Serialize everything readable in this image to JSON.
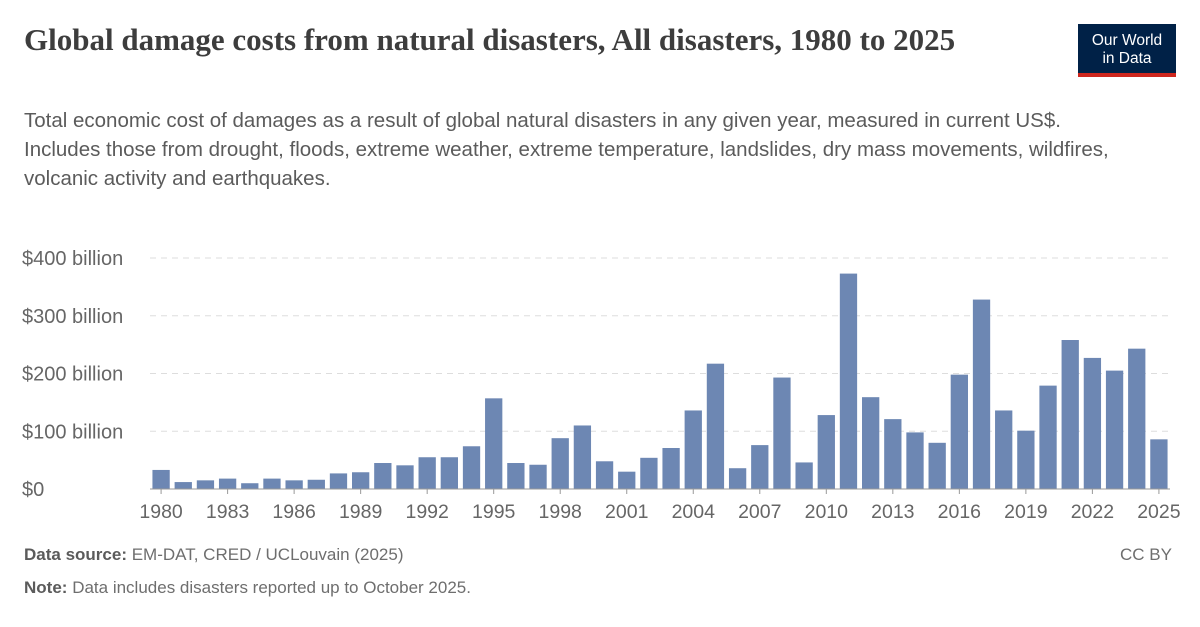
{
  "header": {
    "title": "Global damage costs from natural disasters, All disasters, 1980 to 2025",
    "subtitle": "Total economic cost of damages as a result of global natural disasters in any given year, measured in current US$. Includes those from drought, floods, extreme weather, extreme temperature, landslides, dry mass movements, wildfires, volcanic activity and earthquakes."
  },
  "logo": {
    "line1": "Our World",
    "line2": "in Data",
    "bg_color": "#002147",
    "accent_color": "#ce261e"
  },
  "footer": {
    "source_label": "Data source:",
    "source_text": "EM-DAT, CRED / UCLouvain (2025)",
    "note_label": "Note:",
    "note_text": "Data includes disasters reported up to October 2025.",
    "license": "CC BY"
  },
  "chart_data": {
    "type": "bar",
    "bar_color": "#6d87b3",
    "categories": [
      1980,
      1981,
      1982,
      1983,
      1984,
      1985,
      1986,
      1987,
      1988,
      1989,
      1990,
      1991,
      1992,
      1993,
      1994,
      1995,
      1996,
      1997,
      1998,
      1999,
      2000,
      2001,
      2002,
      2003,
      2004,
      2005,
      2006,
      2007,
      2008,
      2009,
      2010,
      2011,
      2012,
      2013,
      2014,
      2015,
      2016,
      2017,
      2018,
      2019,
      2020,
      2021,
      2022,
      2023,
      2024,
      2025
    ],
    "values": [
      33,
      12,
      15,
      18,
      10,
      18,
      15,
      16,
      27,
      29,
      45,
      41,
      55,
      55,
      74,
      157,
      45,
      42,
      88,
      110,
      48,
      30,
      54,
      71,
      136,
      217,
      36,
      76,
      193,
      46,
      128,
      373,
      159,
      121,
      98,
      80,
      198,
      328,
      136,
      101,
      179,
      258,
      227,
      205,
      243,
      86
    ],
    "unit": "billion US$",
    "ylim": [
      0,
      400
    ],
    "yticks": [
      {
        "value": 0,
        "label": "$0"
      },
      {
        "value": 100,
        "label": "$100 billion"
      },
      {
        "value": 200,
        "label": "$200 billion"
      },
      {
        "value": 300,
        "label": "$300 billion"
      },
      {
        "value": 400,
        "label": "$400 billion"
      }
    ],
    "xticks": [
      1980,
      1983,
      1986,
      1989,
      1992,
      1995,
      1998,
      2001,
      2004,
      2007,
      2010,
      2013,
      2016,
      2019,
      2022,
      2025
    ],
    "grid": true
  }
}
